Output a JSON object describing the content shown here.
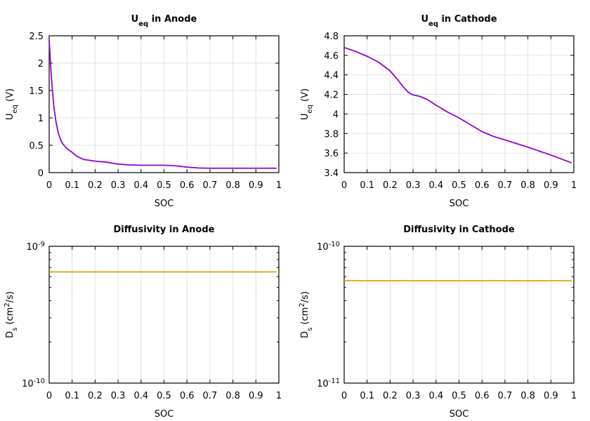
{
  "chart_data": [
    {
      "type": "line",
      "title": "U_eq in Anode",
      "title_parts": {
        "main": "U",
        "sub": "eq",
        "rest": " in Anode"
      },
      "xlabel": "SOC",
      "ylabel": "U_eq (V)",
      "ylabel_parts": {
        "main": "U",
        "sub": "eq",
        "rest": " (V)"
      },
      "xlim": [
        0,
        1
      ],
      "ylim": [
        0,
        2.5
      ],
      "x_ticks": [
        "0",
        "0.1",
        "0.2",
        "0.3",
        "0.4",
        "0.5",
        "0.6",
        "0.7",
        "0.8",
        "0.9",
        "1"
      ],
      "y_ticks": [
        "0",
        "0.5",
        "1",
        "1.5",
        "2",
        "2.5"
      ],
      "grid": true,
      "series": [
        {
          "color": "#9400d3",
          "x": [
            0.0,
            0.01,
            0.02,
            0.03,
            0.04,
            0.05,
            0.06,
            0.08,
            0.1,
            0.12,
            0.15,
            0.2,
            0.25,
            0.3,
            0.35,
            0.4,
            0.45,
            0.5,
            0.55,
            0.6,
            0.65,
            0.7,
            0.8,
            0.9,
            0.99
          ],
          "y": [
            2.42,
            1.72,
            1.22,
            0.92,
            0.72,
            0.6,
            0.52,
            0.43,
            0.37,
            0.3,
            0.24,
            0.21,
            0.19,
            0.155,
            0.14,
            0.135,
            0.135,
            0.135,
            0.125,
            0.1,
            0.085,
            0.08,
            0.08,
            0.08,
            0.08
          ]
        }
      ]
    },
    {
      "type": "line",
      "title": "U_eq in Cathode",
      "title_parts": {
        "main": "U",
        "sub": "eq",
        "rest": " in Cathode"
      },
      "xlabel": "SOC",
      "ylabel": "U_eq (V)",
      "ylabel_parts": {
        "main": "U",
        "sub": "eq",
        "rest": " (V)"
      },
      "xlim": [
        0,
        1
      ],
      "ylim": [
        3.4,
        4.8
      ],
      "x_ticks": [
        "0",
        "0.1",
        "0.2",
        "0.3",
        "0.4",
        "0.5",
        "0.6",
        "0.7",
        "0.8",
        "0.9",
        "1"
      ],
      "y_ticks": [
        "3.4",
        "3.6",
        "3.8",
        "4",
        "4.2",
        "4.4",
        "4.6",
        "4.8"
      ],
      "grid": true,
      "series": [
        {
          "color": "#9400d3",
          "x": [
            0.0,
            0.05,
            0.1,
            0.15,
            0.2,
            0.23,
            0.26,
            0.28,
            0.3,
            0.33,
            0.36,
            0.4,
            0.45,
            0.5,
            0.55,
            0.6,
            0.65,
            0.7,
            0.8,
            0.9,
            0.99
          ],
          "y": [
            4.68,
            4.64,
            4.59,
            4.53,
            4.44,
            4.36,
            4.27,
            4.22,
            4.195,
            4.18,
            4.15,
            4.09,
            4.02,
            3.96,
            3.89,
            3.82,
            3.77,
            3.735,
            3.66,
            3.58,
            3.5
          ]
        }
      ]
    },
    {
      "type": "line",
      "title": "Diffusivity in Anode",
      "xlabel": "SOC",
      "ylabel": "D_s (cm^2/s)",
      "ylabel_parts": {
        "main": "D",
        "sub": "s",
        "pre_sup": " (cm",
        "sup": "2",
        "rest": "/s)"
      },
      "xlim": [
        0,
        1
      ],
      "ylim": [
        1e-10,
        1e-09
      ],
      "yscale": "log",
      "x_ticks": [
        "0",
        "0.1",
        "0.2",
        "0.3",
        "0.4",
        "0.5",
        "0.6",
        "0.7",
        "0.8",
        "0.9",
        "1"
      ],
      "y_ticks": [
        {
          "base": "10",
          "exp": "-10"
        },
        {
          "base": "10",
          "exp": "-9"
        }
      ],
      "grid": true,
      "series": [
        {
          "color": "#e69f00",
          "x": [
            0.0,
            0.99
          ],
          "y": [
            6.5e-10,
            6.5e-10
          ]
        }
      ]
    },
    {
      "type": "line",
      "title": "Diffusivity in Cathode",
      "xlabel": "SOC",
      "ylabel": "D_s (cm^2/s)",
      "ylabel_parts": {
        "main": "D",
        "sub": "s",
        "pre_sup": " (cm",
        "sup": "2",
        "rest": "/s)"
      },
      "xlim": [
        0,
        1
      ],
      "ylim": [
        1e-11,
        1e-10
      ],
      "yscale": "log",
      "x_ticks": [
        "0",
        "0.1",
        "0.2",
        "0.3",
        "0.4",
        "0.5",
        "0.6",
        "0.7",
        "0.8",
        "0.9",
        "1"
      ],
      "y_ticks": [
        {
          "base": "10",
          "exp": "-11"
        },
        {
          "base": "10",
          "exp": "-10"
        }
      ],
      "grid": true,
      "series": [
        {
          "color": "#e69f00",
          "x": [
            0.0,
            0.99
          ],
          "y": [
            5.6e-11,
            5.6e-11
          ]
        }
      ]
    }
  ]
}
